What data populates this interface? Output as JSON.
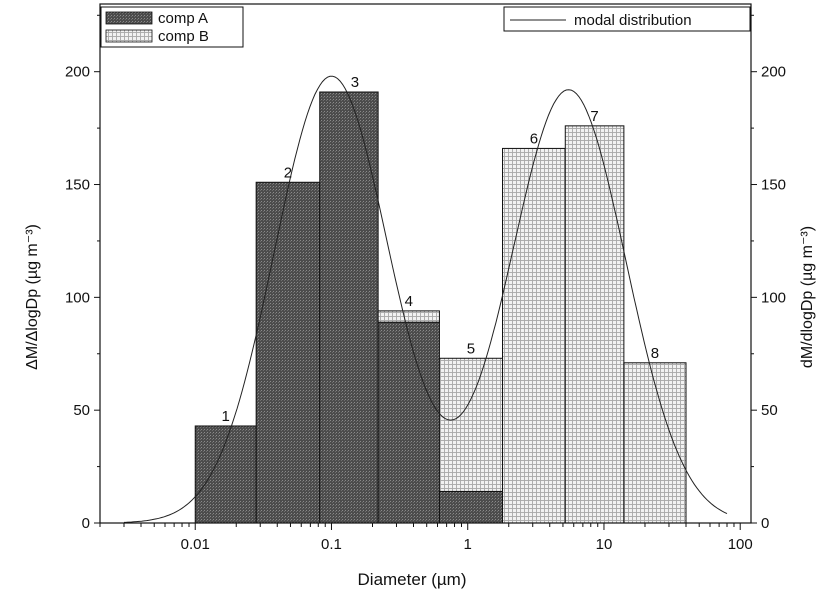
{
  "chart_data": {
    "type": "bar",
    "x_scale": "log",
    "xlabel": "Diameter (µm)",
    "ylabel_left": "ΔM/ΔlogDp (µg m⁻³)",
    "ylabel_right": "dM/dlogDp (µg m⁻³)",
    "xlim": [
      0.002,
      120
    ],
    "ylim": [
      0,
      230
    ],
    "x_ticks": [
      0.01,
      0.1,
      1,
      10,
      100
    ],
    "x_tick_labels": [
      "0.01",
      "0.1",
      "1",
      "10",
      "100"
    ],
    "y_ticks": [
      0,
      50,
      100,
      150,
      200
    ],
    "y_tick_labels": [
      "0",
      "50",
      "100",
      "150",
      "200"
    ],
    "bins": [
      {
        "label": "1",
        "x_lo": 0.01,
        "x_hi": 0.028,
        "comp_a": 43,
        "comp_b": 0
      },
      {
        "label": "2",
        "x_lo": 0.028,
        "x_hi": 0.082,
        "comp_a": 151,
        "comp_b": 0
      },
      {
        "label": "3",
        "x_lo": 0.082,
        "x_hi": 0.22,
        "comp_a": 191,
        "comp_b": 0
      },
      {
        "label": "4",
        "x_lo": 0.22,
        "x_hi": 0.62,
        "comp_a": 89,
        "comp_b": 5
      },
      {
        "label": "5",
        "x_lo": 0.62,
        "x_hi": 1.8,
        "comp_a": 14,
        "comp_b": 59
      },
      {
        "label": "6",
        "x_lo": 1.8,
        "x_hi": 5.2,
        "comp_a": 0,
        "comp_b": 166
      },
      {
        "label": "7",
        "x_lo": 5.2,
        "x_hi": 14,
        "comp_a": 0,
        "comp_b": 176
      },
      {
        "label": "8",
        "x_lo": 14,
        "x_hi": 40,
        "comp_a": 0,
        "comp_b": 71
      }
    ],
    "series": [
      {
        "name": "comp A",
        "fill": "dark-crosshatch",
        "color": "#5a5a5a"
      },
      {
        "name": "comp B",
        "fill": "light-grid",
        "color": "#cfcfcf"
      }
    ],
    "modal_distribution": {
      "name": "modal distribution",
      "modes": [
        {
          "peak_x": 0.1,
          "peak_y": 198,
          "log_sigma": 0.42
        },
        {
          "peak_x": 5.5,
          "peak_y": 192,
          "log_sigma": 0.42
        }
      ]
    },
    "legend_left_placement": "top-left",
    "legend_right_placement": "top-right",
    "grid": false
  },
  "colors": {
    "axis": "#111111",
    "comp_a": "#5a5a5a",
    "comp_b": "#d9d9d9",
    "curve": "#222222"
  }
}
